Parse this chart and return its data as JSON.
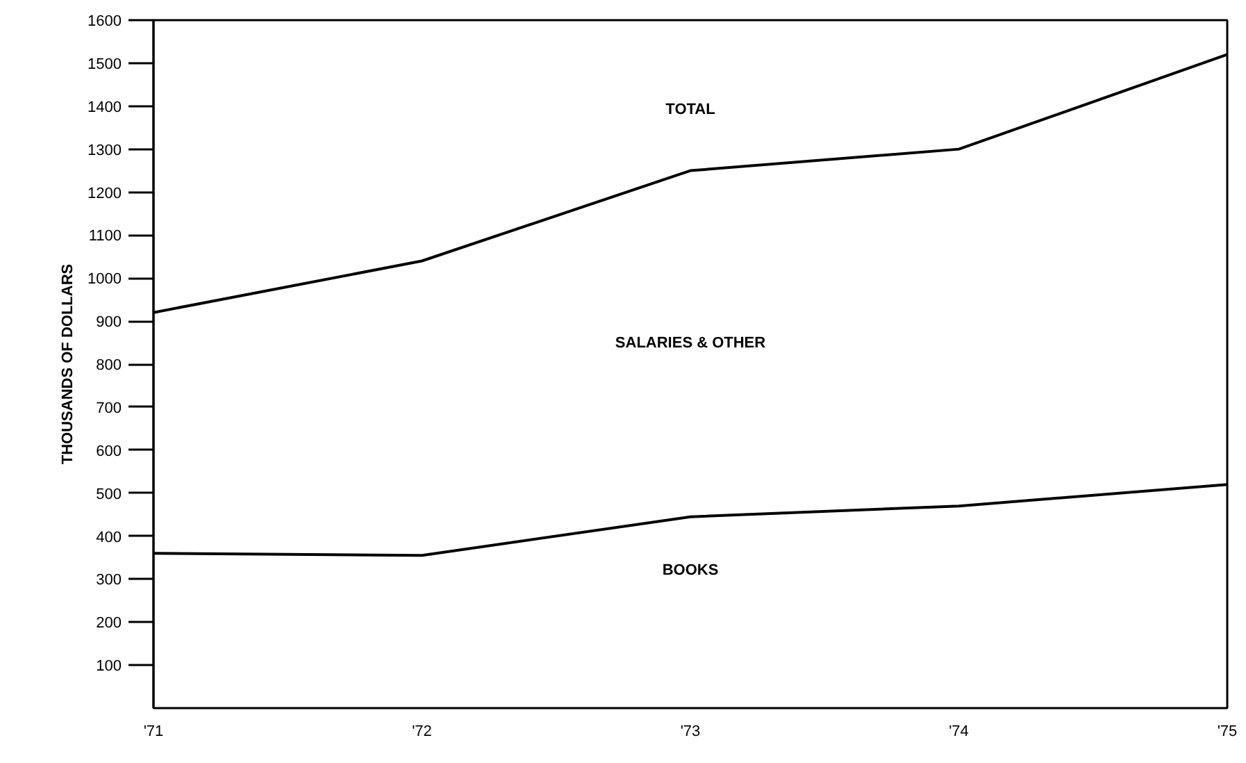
{
  "chart_data": {
    "type": "line",
    "ylabel": "THOUSANDS OF DOLLARS",
    "categories": [
      "'71",
      "'72",
      "'73",
      "'74",
      "'75"
    ],
    "series": [
      {
        "color": "#000000",
        "values": [
          920,
          1040,
          1250,
          1300,
          1520
        ]
      },
      {
        "color": "#000000",
        "values": [
          360,
          355,
          445,
          470,
          520
        ]
      }
    ],
    "ylim": [
      0,
      1600
    ],
    "yticks": [
      100,
      200,
      300,
      400,
      500,
      600,
      700,
      800,
      900,
      1000,
      1100,
      1200,
      1300,
      1400,
      1500,
      1600
    ],
    "grid": false,
    "marker": "none",
    "line_style": "solid",
    "annotations": [
      "TOTAL",
      "SALARIES & OTHER",
      "BOOKS"
    ]
  }
}
